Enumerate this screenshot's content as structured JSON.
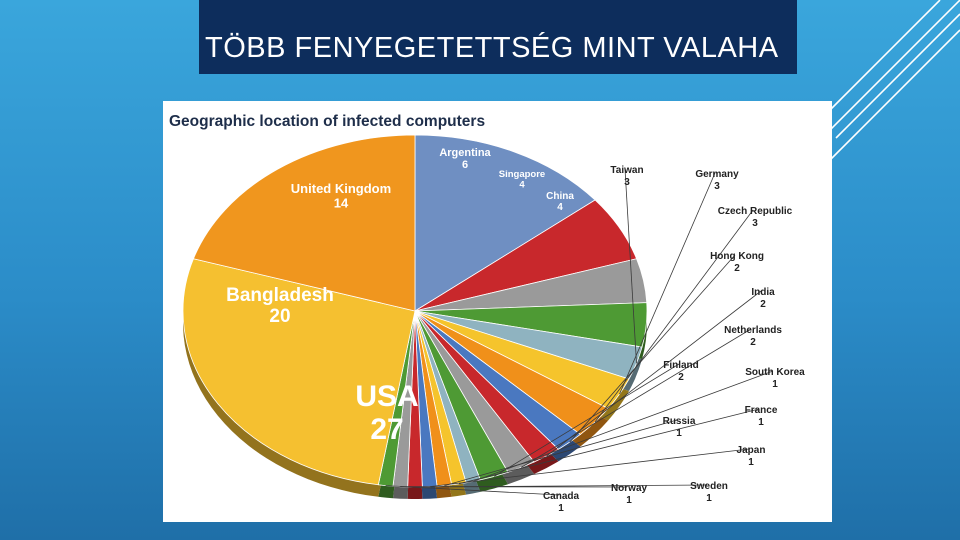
{
  "slide": {
    "title": "TÖBB FENYEGETETTSÉG MINT VALAHA"
  },
  "chart_data": {
    "type": "pie",
    "title": "Geographic location of infected computers",
    "series": [
      {
        "label": "United Kingdom",
        "value": 14,
        "color": "#6f8fc2"
      },
      {
        "label": "Argentina",
        "value": 6,
        "color": "#c8282c"
      },
      {
        "label": "Singapore",
        "value": 4,
        "color": "#9a9a9a"
      },
      {
        "label": "China",
        "value": 4,
        "color": "#4e9a34"
      },
      {
        "label": "Taiwan",
        "value": 3,
        "color": "#8fb3c0"
      },
      {
        "label": "Germany",
        "value": 3,
        "color": "#f5c42c"
      },
      {
        "label": "Czech Republic",
        "value": 3,
        "color": "#f0901a"
      },
      {
        "label": "Hong Kong",
        "value": 2,
        "color": "#4a78c0"
      },
      {
        "label": "India",
        "value": 2,
        "color": "#c8282c"
      },
      {
        "label": "Netherlands",
        "value": 2,
        "color": "#9a9a9a"
      },
      {
        "label": "Finland",
        "value": 2,
        "color": "#4e9a34"
      },
      {
        "label": "South Korea",
        "value": 1,
        "color": "#8fb3c0"
      },
      {
        "label": "France",
        "value": 1,
        "color": "#f5c42c"
      },
      {
        "label": "Russia",
        "value": 1,
        "color": "#f0901a"
      },
      {
        "label": "Japan",
        "value": 1,
        "color": "#4a78c0"
      },
      {
        "label": "Sweden",
        "value": 1,
        "color": "#c8282c"
      },
      {
        "label": "Norway",
        "value": 1,
        "color": "#9a9a9a"
      },
      {
        "label": "Canada",
        "value": 1,
        "color": "#4e9a34"
      },
      {
        "label": "USA",
        "value": 27,
        "color": "#f5c030"
      },
      {
        "label": "Bangladesh",
        "value": 20,
        "color": "#f0961e"
      }
    ]
  }
}
